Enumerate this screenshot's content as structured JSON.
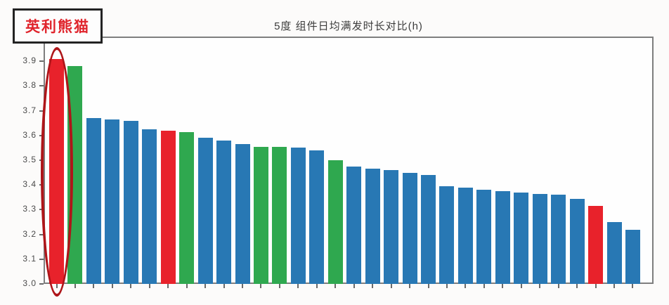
{
  "annotation": {
    "label": "英利熊猫",
    "text_color": "#e0242c",
    "box_border_color": "#232323"
  },
  "highlight": {
    "shape": "ellipse",
    "bar_index": 0,
    "color": "#ae1519"
  },
  "chart_data": {
    "type": "bar",
    "title": "5度 组件日均满发时长对比(h)",
    "xlabel": "",
    "ylabel": "",
    "ylim": [
      3.0,
      4.0
    ],
    "yticks": [
      "3.0",
      "3.1",
      "3.2",
      "3.3",
      "3.4",
      "3.5",
      "3.6",
      "3.7",
      "3.8",
      "3.9"
    ],
    "grid": false,
    "legend": null,
    "palette": {
      "blue": "#2878b4",
      "green": "#2fa84f",
      "red": "#e8222b"
    },
    "bars": [
      {
        "value": 3.91,
        "color": "red"
      },
      {
        "value": 3.88,
        "color": "green"
      },
      {
        "value": 3.67,
        "color": "blue"
      },
      {
        "value": 3.665,
        "color": "blue"
      },
      {
        "value": 3.66,
        "color": "blue"
      },
      {
        "value": 3.625,
        "color": "blue"
      },
      {
        "value": 3.62,
        "color": "red"
      },
      {
        "value": 3.615,
        "color": "green"
      },
      {
        "value": 3.59,
        "color": "blue"
      },
      {
        "value": 3.58,
        "color": "blue"
      },
      {
        "value": 3.565,
        "color": "blue"
      },
      {
        "value": 3.555,
        "color": "green"
      },
      {
        "value": 3.555,
        "color": "green"
      },
      {
        "value": 3.55,
        "color": "blue"
      },
      {
        "value": 3.54,
        "color": "blue"
      },
      {
        "value": 3.5,
        "color": "green"
      },
      {
        "value": 3.475,
        "color": "blue"
      },
      {
        "value": 3.465,
        "color": "blue"
      },
      {
        "value": 3.46,
        "color": "blue"
      },
      {
        "value": 3.45,
        "color": "blue"
      },
      {
        "value": 3.44,
        "color": "blue"
      },
      {
        "value": 3.395,
        "color": "blue"
      },
      {
        "value": 3.39,
        "color": "blue"
      },
      {
        "value": 3.38,
        "color": "blue"
      },
      {
        "value": 3.375,
        "color": "blue"
      },
      {
        "value": 3.37,
        "color": "blue"
      },
      {
        "value": 3.365,
        "color": "blue"
      },
      {
        "value": 3.36,
        "color": "blue"
      },
      {
        "value": 3.345,
        "color": "blue"
      },
      {
        "value": 3.315,
        "color": "red"
      },
      {
        "value": 3.25,
        "color": "blue"
      },
      {
        "value": 3.22,
        "color": "blue"
      }
    ]
  }
}
